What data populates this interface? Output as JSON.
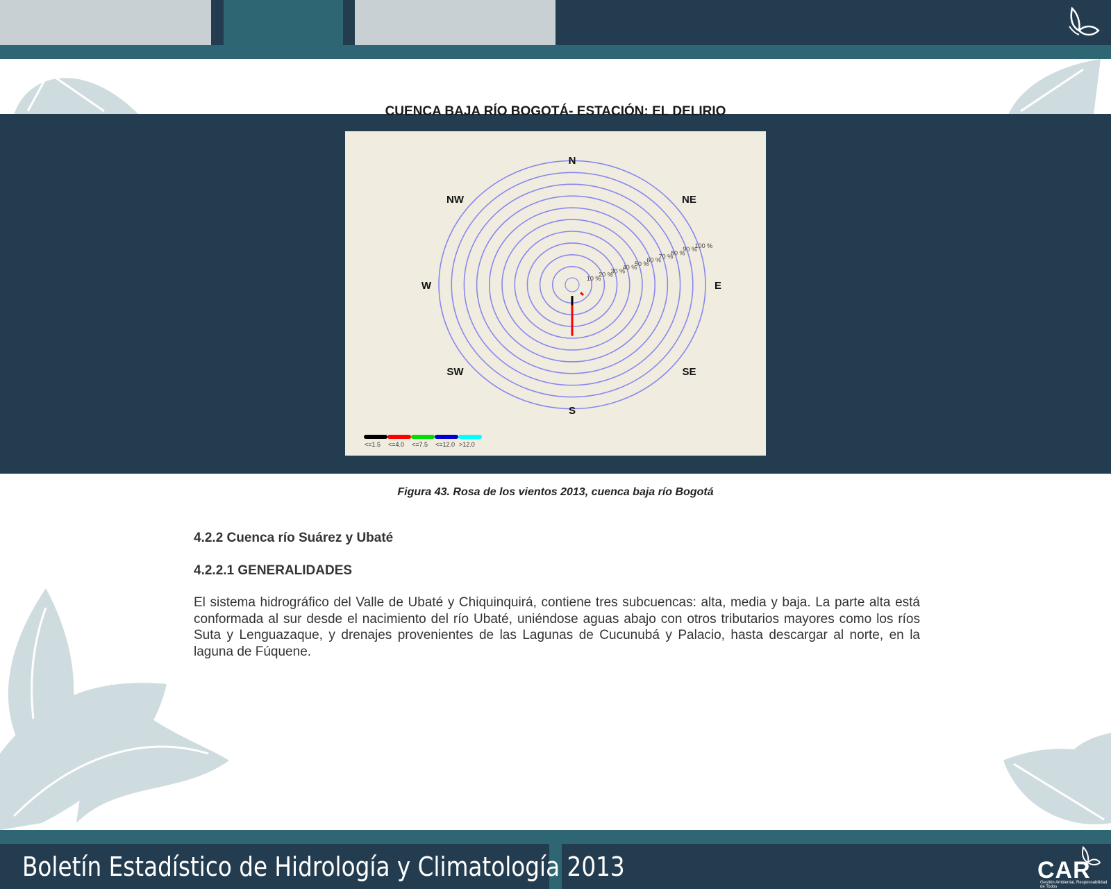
{
  "figure": {
    "title": "CUENCA BAJA RÍO BOGOTÁ- ESTACIÓN: EL DELIRIO",
    "caption": "Figura 43. Rosa de los vientos 2013,  cuenca baja río Bogotá"
  },
  "chart_data": {
    "type": "wind-rose",
    "directions": [
      "N",
      "NE",
      "E",
      "SE",
      "S",
      "SW",
      "W",
      "NW"
    ],
    "ring_labels": [
      "10 %",
      "20 %",
      "30 %",
      "40 %",
      "50 %",
      "60 %",
      "70 %",
      "80 %",
      "90 %",
      "100 %"
    ],
    "rmax": 100,
    "ring_color": "#8888ee",
    "speed_classes": [
      {
        "label": "<=1.5",
        "color": "#000000"
      },
      {
        "label": "<=4.0",
        "color": "#ff0000"
      },
      {
        "label": "<=7.5",
        "color": "#00dd00"
      },
      {
        "label": "<=12.0",
        "color": "#0000cc"
      },
      {
        "label": ">12.0",
        "color": "#00ffff"
      }
    ],
    "petals": [
      {
        "direction": "S",
        "angle_deg": 180,
        "segments": [
          {
            "class": "<=1.5",
            "from": 4,
            "to": 12
          },
          {
            "class": "<=4.0",
            "from": 12,
            "to": 38
          }
        ]
      },
      {
        "direction": "SE",
        "angle_deg": 135,
        "segments": [
          {
            "class": "<=4.0",
            "from": 4,
            "to": 7
          }
        ]
      }
    ]
  },
  "section": {
    "heading": "4.2.2 Cuenca río Suárez y Ubaté",
    "subheading": "4.2.2.1 GENERALIDADES",
    "paragraph": "El sistema hidrográfico del Valle de Ubaté y Chiquinquirá, contiene tres subcuencas: alta,  media y baja. La parte alta está conformada al sur desde el nacimiento del río Ubaté,  uniéndose aguas abajo con otros tributarios mayores como los ríos Suta y Lenguazaque, y  drenajes provenientes de las Lagunas de Cucunubá y Palacio, hasta descargar al norte, en la  laguna de Fúquene."
  },
  "footer": {
    "title": "Boletín Estadístico de Hidrología y Climatología 2013",
    "logo_text": "CAR",
    "logo_subtext": "Gestión Ambiental, Responsabilidad de Todos"
  },
  "colors": {
    "dark": "#233c4f",
    "teal": "#2e6673",
    "light": "#c8d0d4",
    "decor": "#cfdcdf"
  }
}
